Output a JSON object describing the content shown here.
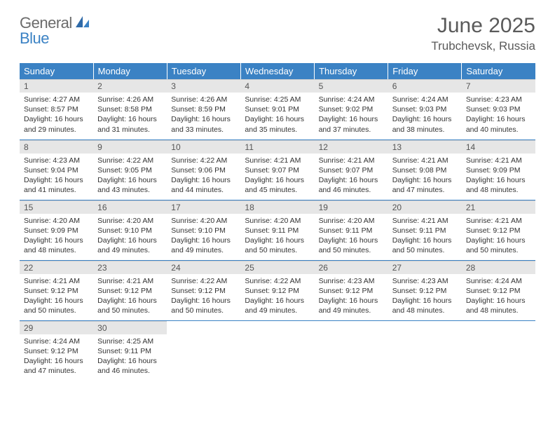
{
  "logo": {
    "text1": "General",
    "text2": "Blue"
  },
  "title": "June 2025",
  "location": "Trubchevsk, Russia",
  "dayHeaders": [
    "Sunday",
    "Monday",
    "Tuesday",
    "Wednesday",
    "Thursday",
    "Friday",
    "Saturday"
  ],
  "colors": {
    "headerBg": "#3b82c4",
    "headerFg": "#ffffff",
    "dayNumBg": "#e6e6e6"
  },
  "weeks": [
    [
      {
        "n": "1",
        "sr": "Sunrise: 4:27 AM",
        "ss": "Sunset: 8:57 PM",
        "d1": "Daylight: 16 hours",
        "d2": "and 29 minutes."
      },
      {
        "n": "2",
        "sr": "Sunrise: 4:26 AM",
        "ss": "Sunset: 8:58 PM",
        "d1": "Daylight: 16 hours",
        "d2": "and 31 minutes."
      },
      {
        "n": "3",
        "sr": "Sunrise: 4:26 AM",
        "ss": "Sunset: 8:59 PM",
        "d1": "Daylight: 16 hours",
        "d2": "and 33 minutes."
      },
      {
        "n": "4",
        "sr": "Sunrise: 4:25 AM",
        "ss": "Sunset: 9:01 PM",
        "d1": "Daylight: 16 hours",
        "d2": "and 35 minutes."
      },
      {
        "n": "5",
        "sr": "Sunrise: 4:24 AM",
        "ss": "Sunset: 9:02 PM",
        "d1": "Daylight: 16 hours",
        "d2": "and 37 minutes."
      },
      {
        "n": "6",
        "sr": "Sunrise: 4:24 AM",
        "ss": "Sunset: 9:03 PM",
        "d1": "Daylight: 16 hours",
        "d2": "and 38 minutes."
      },
      {
        "n": "7",
        "sr": "Sunrise: 4:23 AM",
        "ss": "Sunset: 9:03 PM",
        "d1": "Daylight: 16 hours",
        "d2": "and 40 minutes."
      }
    ],
    [
      {
        "n": "8",
        "sr": "Sunrise: 4:23 AM",
        "ss": "Sunset: 9:04 PM",
        "d1": "Daylight: 16 hours",
        "d2": "and 41 minutes."
      },
      {
        "n": "9",
        "sr": "Sunrise: 4:22 AM",
        "ss": "Sunset: 9:05 PM",
        "d1": "Daylight: 16 hours",
        "d2": "and 43 minutes."
      },
      {
        "n": "10",
        "sr": "Sunrise: 4:22 AM",
        "ss": "Sunset: 9:06 PM",
        "d1": "Daylight: 16 hours",
        "d2": "and 44 minutes."
      },
      {
        "n": "11",
        "sr": "Sunrise: 4:21 AM",
        "ss": "Sunset: 9:07 PM",
        "d1": "Daylight: 16 hours",
        "d2": "and 45 minutes."
      },
      {
        "n": "12",
        "sr": "Sunrise: 4:21 AM",
        "ss": "Sunset: 9:07 PM",
        "d1": "Daylight: 16 hours",
        "d2": "and 46 minutes."
      },
      {
        "n": "13",
        "sr": "Sunrise: 4:21 AM",
        "ss": "Sunset: 9:08 PM",
        "d1": "Daylight: 16 hours",
        "d2": "and 47 minutes."
      },
      {
        "n": "14",
        "sr": "Sunrise: 4:21 AM",
        "ss": "Sunset: 9:09 PM",
        "d1": "Daylight: 16 hours",
        "d2": "and 48 minutes."
      }
    ],
    [
      {
        "n": "15",
        "sr": "Sunrise: 4:20 AM",
        "ss": "Sunset: 9:09 PM",
        "d1": "Daylight: 16 hours",
        "d2": "and 48 minutes."
      },
      {
        "n": "16",
        "sr": "Sunrise: 4:20 AM",
        "ss": "Sunset: 9:10 PM",
        "d1": "Daylight: 16 hours",
        "d2": "and 49 minutes."
      },
      {
        "n": "17",
        "sr": "Sunrise: 4:20 AM",
        "ss": "Sunset: 9:10 PM",
        "d1": "Daylight: 16 hours",
        "d2": "and 49 minutes."
      },
      {
        "n": "18",
        "sr": "Sunrise: 4:20 AM",
        "ss": "Sunset: 9:11 PM",
        "d1": "Daylight: 16 hours",
        "d2": "and 50 minutes."
      },
      {
        "n": "19",
        "sr": "Sunrise: 4:20 AM",
        "ss": "Sunset: 9:11 PM",
        "d1": "Daylight: 16 hours",
        "d2": "and 50 minutes."
      },
      {
        "n": "20",
        "sr": "Sunrise: 4:21 AM",
        "ss": "Sunset: 9:11 PM",
        "d1": "Daylight: 16 hours",
        "d2": "and 50 minutes."
      },
      {
        "n": "21",
        "sr": "Sunrise: 4:21 AM",
        "ss": "Sunset: 9:12 PM",
        "d1": "Daylight: 16 hours",
        "d2": "and 50 minutes."
      }
    ],
    [
      {
        "n": "22",
        "sr": "Sunrise: 4:21 AM",
        "ss": "Sunset: 9:12 PM",
        "d1": "Daylight: 16 hours",
        "d2": "and 50 minutes."
      },
      {
        "n": "23",
        "sr": "Sunrise: 4:21 AM",
        "ss": "Sunset: 9:12 PM",
        "d1": "Daylight: 16 hours",
        "d2": "and 50 minutes."
      },
      {
        "n": "24",
        "sr": "Sunrise: 4:22 AM",
        "ss": "Sunset: 9:12 PM",
        "d1": "Daylight: 16 hours",
        "d2": "and 50 minutes."
      },
      {
        "n": "25",
        "sr": "Sunrise: 4:22 AM",
        "ss": "Sunset: 9:12 PM",
        "d1": "Daylight: 16 hours",
        "d2": "and 49 minutes."
      },
      {
        "n": "26",
        "sr": "Sunrise: 4:23 AM",
        "ss": "Sunset: 9:12 PM",
        "d1": "Daylight: 16 hours",
        "d2": "and 49 minutes."
      },
      {
        "n": "27",
        "sr": "Sunrise: 4:23 AM",
        "ss": "Sunset: 9:12 PM",
        "d1": "Daylight: 16 hours",
        "d2": "and 48 minutes."
      },
      {
        "n": "28",
        "sr": "Sunrise: 4:24 AM",
        "ss": "Sunset: 9:12 PM",
        "d1": "Daylight: 16 hours",
        "d2": "and 48 minutes."
      }
    ],
    [
      {
        "n": "29",
        "sr": "Sunrise: 4:24 AM",
        "ss": "Sunset: 9:12 PM",
        "d1": "Daylight: 16 hours",
        "d2": "and 47 minutes."
      },
      {
        "n": "30",
        "sr": "Sunrise: 4:25 AM",
        "ss": "Sunset: 9:11 PM",
        "d1": "Daylight: 16 hours",
        "d2": "and 46 minutes."
      },
      {
        "empty": true
      },
      {
        "empty": true
      },
      {
        "empty": true
      },
      {
        "empty": true
      },
      {
        "empty": true
      }
    ]
  ]
}
